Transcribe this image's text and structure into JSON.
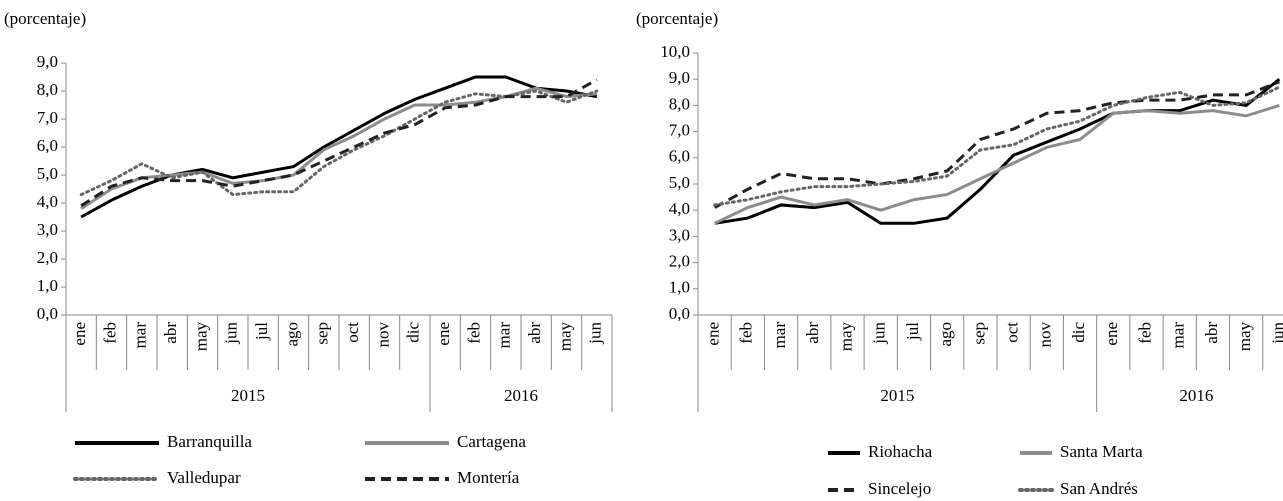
{
  "chart_data": [
    {
      "type": "line",
      "y_label": "(porcentaje)",
      "category_groups": [
        {
          "name": "2015",
          "categories": [
            "ene",
            "feb",
            "mar",
            "abr",
            "may",
            "jun",
            "jul",
            "ago",
            "sep",
            "oct",
            "nov",
            "dic"
          ]
        },
        {
          "name": "2016",
          "categories": [
            "ene",
            "feb",
            "mar",
            "abr",
            "may",
            "jun"
          ]
        }
      ],
      "ylim": [
        0,
        9
      ],
      "yticks": [
        {
          "value": 0,
          "label": "0,0"
        },
        {
          "value": 1,
          "label": "1,0"
        },
        {
          "value": 2,
          "label": "2,0"
        },
        {
          "value": 3,
          "label": "3,0"
        },
        {
          "value": 4,
          "label": "4,0"
        },
        {
          "value": 5,
          "label": "5,0"
        },
        {
          "value": 6,
          "label": "6,0"
        },
        {
          "value": 7,
          "label": "7,0"
        },
        {
          "value": 8,
          "label": "8,0"
        },
        {
          "value": 9,
          "label": "9,0"
        }
      ],
      "series": [
        {
          "name": "Barranquilla",
          "color": "#000000",
          "dash": "solid",
          "values": [
            3.5,
            4.1,
            4.6,
            5.0,
            5.2,
            4.9,
            5.1,
            5.3,
            6.0,
            6.6,
            7.2,
            7.7,
            8.1,
            8.5,
            8.5,
            8.1,
            8.0,
            7.8
          ]
        },
        {
          "name": "Cartagena",
          "color": "#8c8c8c",
          "dash": "solid",
          "values": [
            3.8,
            4.5,
            4.9,
            5.0,
            5.1,
            4.7,
            4.8,
            5.0,
            5.9,
            6.4,
            7.0,
            7.5,
            7.5,
            7.6,
            7.8,
            8.1,
            7.8,
            7.9
          ]
        },
        {
          "name": "Valledupar",
          "color": "#666666",
          "dash": "dot",
          "values": [
            4.3,
            4.8,
            5.4,
            4.9,
            5.1,
            4.3,
            4.4,
            4.4,
            5.3,
            5.9,
            6.4,
            7.0,
            7.6,
            7.9,
            7.8,
            8.0,
            7.6,
            8.0
          ]
        },
        {
          "name": "Montería",
          "color": "#222222",
          "dash": "dash",
          "values": [
            3.9,
            4.6,
            4.9,
            4.8,
            4.8,
            4.6,
            4.8,
            5.0,
            5.5,
            6.0,
            6.5,
            6.8,
            7.4,
            7.5,
            7.8,
            7.8,
            7.8,
            8.4
          ]
        }
      ]
    },
    {
      "type": "line",
      "y_label": "(porcentaje)",
      "category_groups": [
        {
          "name": "2015",
          "categories": [
            "ene",
            "feb",
            "mar",
            "abr",
            "may",
            "jun",
            "jul",
            "ago",
            "sep",
            "oct",
            "nov",
            "dic"
          ]
        },
        {
          "name": "2016",
          "categories": [
            "ene",
            "feb",
            "mar",
            "abr",
            "may",
            "jun"
          ]
        }
      ],
      "ylim": [
        0,
        10
      ],
      "yticks": [
        {
          "value": 0,
          "label": "0,0"
        },
        {
          "value": 1,
          "label": "1,0"
        },
        {
          "value": 2,
          "label": "2,0"
        },
        {
          "value": 3,
          "label": "3,0"
        },
        {
          "value": 4,
          "label": "4,0"
        },
        {
          "value": 5,
          "label": "5,0"
        },
        {
          "value": 6,
          "label": "6,0"
        },
        {
          "value": 7,
          "label": "7,0"
        },
        {
          "value": 8,
          "label": "8,0"
        },
        {
          "value": 9,
          "label": "9,0"
        },
        {
          "value": 10,
          "label": "10,0"
        }
      ],
      "series": [
        {
          "name": "Riohacha",
          "color": "#000000",
          "dash": "solid",
          "values": [
            3.5,
            3.7,
            4.2,
            4.1,
            4.3,
            3.5,
            3.5,
            3.7,
            4.8,
            6.1,
            6.6,
            7.1,
            7.7,
            7.8,
            7.8,
            8.2,
            8.0,
            9.0
          ]
        },
        {
          "name": "Santa Marta",
          "color": "#8c8c8c",
          "dash": "solid",
          "values": [
            3.5,
            4.1,
            4.5,
            4.2,
            4.4,
            4.0,
            4.4,
            4.6,
            5.2,
            5.8,
            6.4,
            6.7,
            7.7,
            7.8,
            7.7,
            7.8,
            7.6,
            8.0
          ]
        },
        {
          "name": "Sincelejo",
          "color": "#222222",
          "dash": "dash",
          "values": [
            4.1,
            4.8,
            5.4,
            5.2,
            5.2,
            5.0,
            5.2,
            5.5,
            6.7,
            7.1,
            7.7,
            7.8,
            8.1,
            8.2,
            8.2,
            8.4,
            8.4,
            8.9
          ]
        },
        {
          "name": "San Andrés",
          "color": "#666666",
          "dash": "dot",
          "values": [
            4.2,
            4.4,
            4.7,
            4.9,
            4.9,
            5.0,
            5.1,
            5.3,
            6.3,
            6.5,
            7.1,
            7.4,
            8.0,
            8.3,
            8.5,
            8.0,
            8.1,
            8.7
          ]
        }
      ]
    }
  ]
}
